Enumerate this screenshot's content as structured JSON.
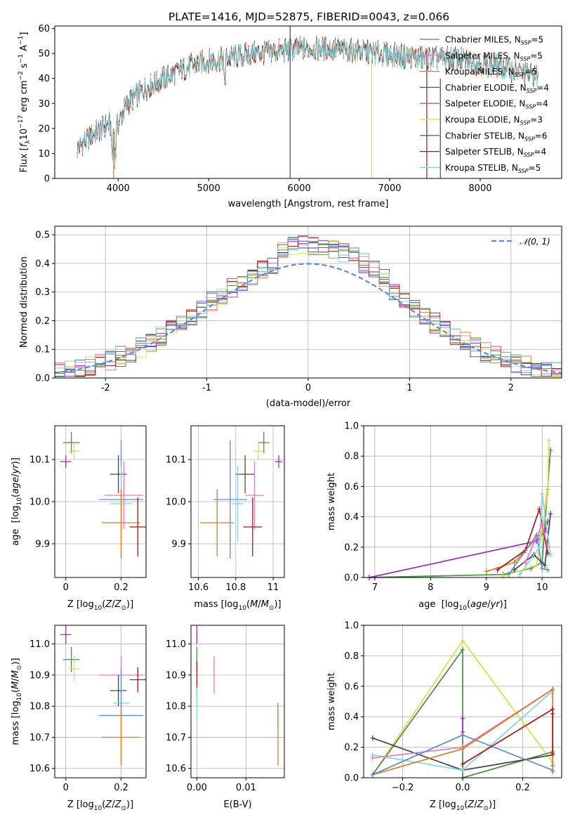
{
  "figure": {
    "title": "PLATE=1416, MJD=52875, FIBERID=0043, z=0.066"
  },
  "colors": {
    "chabrier_miles": "#4c8a4c",
    "salpeter_miles": "#e377c2",
    "kroupa_miles": "#e07b20",
    "chabrier_elodie": "#555555",
    "salpeter_elodie": "#9a2fb5",
    "kroupa_elodie": "#d4e04a",
    "chabrier_stelib": "#444444",
    "salpeter_stelib": "#b01515",
    "kroupa_stelib": "#7fd6dc",
    "blue": "#5f8ad6",
    "grid": "#b0b0b0"
  },
  "chart_data": [
    {
      "type": "line",
      "id": "spectrum",
      "title": "PLATE=1416, MJD=52875, FIBERID=0043, z=0.066",
      "xlabel": "wavelength [Angstrom, rest frame]",
      "ylabel": "Flux [f_λ 10^-17 erg cm^-2 s^-1 A^-1]",
      "xlim": [
        3300,
        8900
      ],
      "ylim": [
        0,
        61
      ],
      "xticks": [
        4000,
        5000,
        6000,
        7000,
        8000
      ],
      "yticks": [
        0,
        10,
        20,
        30,
        40,
        50,
        60
      ],
      "grid": false,
      "legend_position": "top-right",
      "continuum": {
        "x": [
          3550,
          3700,
          3900,
          3950,
          4100,
          4300,
          4500,
          4800,
          5000,
          5200,
          5500,
          5800,
          6000,
          6300,
          6600,
          6900,
          7100,
          7400,
          7700,
          8000,
          8300,
          8600
        ],
        "y": [
          12,
          17,
          22,
          18,
          30,
          36,
          40,
          45,
          47,
          48,
          50,
          51,
          52,
          52,
          51,
          50,
          49,
          48,
          48,
          46,
          44,
          41
        ]
      },
      "series": [
        {
          "name": "Chabrier MILES",
          "nssp": "5"
        },
        {
          "name": "Salpeter MILES",
          "nssp": "5"
        },
        {
          "name": "Kroupa MILES",
          "nssp": "5"
        },
        {
          "name": "Chabrier ELODIE",
          "nssp": "4"
        },
        {
          "name": "Salpeter ELODIE",
          "nssp": "4"
        },
        {
          "name": "Kroupa ELODIE",
          "nssp": "3"
        },
        {
          "name": "Chabrier STELIB",
          "nssp": "6"
        },
        {
          "name": "Salpeter STELIB",
          "nssp": "4"
        },
        {
          "name": "Kroupa STELIB",
          "nssp": "5"
        }
      ]
    },
    {
      "type": "histogram",
      "id": "residuals",
      "xlabel": "(data-model)/error",
      "ylabel": "Normed distribution",
      "xlim": [
        -2.5,
        2.5
      ],
      "ylim": [
        0,
        0.53
      ],
      "xticks": [
        -2,
        -1,
        0,
        1,
        2
      ],
      "yticks": [
        0.0,
        0.1,
        0.2,
        0.3,
        0.4,
        0.5
      ],
      "grid": true,
      "legend": "𝒩(0, 1)",
      "legend_position": "top-right",
      "bin_width": 0.1,
      "reference_curve": {
        "type": "gaussian",
        "mean": 0,
        "sigma": 1
      }
    },
    {
      "type": "scatter",
      "id": "age-vs-z",
      "xlabel": "Z [log10(Z/Z⊙)]",
      "ylabel": "age [log10(age/yr)]",
      "xlim": [
        -0.04,
        0.29
      ],
      "ylim": [
        9.82,
        10.18
      ],
      "xticks": [
        0.0,
        0.2
      ],
      "yticks": [
        9.9,
        10.0,
        10.1
      ],
      "grid": true,
      "points": [
        {
          "x": 0.02,
          "xerr": 0.03,
          "y": 10.14,
          "yerr": 0.025,
          "c": "chabrier_miles"
        },
        {
          "x": 0.03,
          "xerr": 0.02,
          "y": 10.12,
          "yerr": 0.02,
          "c": "kroupa_elodie"
        },
        {
          "x": 0.0,
          "xerr": 0.02,
          "y": 10.095,
          "yerr": 0.015,
          "c": "salpeter_elodie"
        },
        {
          "x": 0.19,
          "xerr": 0.03,
          "y": 10.065,
          "yerr": 0.045,
          "c": "chabrier_stelib"
        },
        {
          "x": 0.21,
          "xerr": 0.07,
          "y": 10.015,
          "yerr": 0.08,
          "c": "salpeter_miles"
        },
        {
          "x": 0.2,
          "xerr": 0.08,
          "y": 10.005,
          "yerr": 0.14,
          "c": "blue"
        },
        {
          "x": 0.2,
          "xerr": 0.04,
          "y": 9.995,
          "yerr": 0.09,
          "c": "kroupa_stelib"
        },
        {
          "x": 0.2,
          "xerr": 0.07,
          "y": 9.95,
          "yerr": 0.08,
          "c": "kroupa_miles"
        },
        {
          "x": 0.26,
          "xerr": 0.03,
          "y": 9.94,
          "yerr": 0.07,
          "c": "salpeter_stelib"
        }
      ]
    },
    {
      "type": "scatter",
      "id": "age-vs-mass",
      "xlabel": "mass [log10(M/M⊙)]",
      "ylabel": "",
      "xlim": [
        10.56,
        11.06
      ],
      "ylim": [
        9.82,
        10.18
      ],
      "xticks": [
        10.6,
        10.8,
        11.0
      ],
      "yticks": [
        9.9,
        10.0,
        10.1
      ],
      "grid": true,
      "points": [
        {
          "x": 10.95,
          "xerr": 0.03,
          "y": 10.14,
          "yerr": 0.025,
          "c": "chabrier_miles"
        },
        {
          "x": 10.92,
          "xerr": 0.03,
          "y": 10.12,
          "yerr": 0.02,
          "c": "kroupa_elodie"
        },
        {
          "x": 11.03,
          "xerr": 0.02,
          "y": 10.095,
          "yerr": 0.015,
          "c": "salpeter_elodie"
        },
        {
          "x": 10.85,
          "xerr": 0.05,
          "y": 10.065,
          "yerr": 0.045,
          "c": "chabrier_stelib"
        },
        {
          "x": 10.9,
          "xerr": 0.05,
          "y": 10.015,
          "yerr": 0.08,
          "c": "salpeter_miles"
        },
        {
          "x": 10.77,
          "xerr": 0.09,
          "y": 10.005,
          "yerr": 0.14,
          "c": "blue"
        },
        {
          "x": 10.81,
          "xerr": 0.03,
          "y": 9.995,
          "yerr": 0.09,
          "c": "kroupa_stelib"
        },
        {
          "x": 10.7,
          "xerr": 0.09,
          "y": 9.95,
          "yerr": 0.08,
          "c": "kroupa_miles"
        },
        {
          "x": 10.89,
          "xerr": 0.05,
          "y": 9.94,
          "yerr": 0.07,
          "c": "salpeter_stelib"
        }
      ]
    },
    {
      "type": "line",
      "id": "weight-vs-age",
      "xlabel": "age [log10(age/yr)]",
      "ylabel": "mass weight",
      "xlim": [
        6.8,
        10.35
      ],
      "ylim": [
        0,
        1.0
      ],
      "xticks": [
        7,
        8,
        9,
        10
      ],
      "yticks": [
        0.0,
        0.2,
        0.4,
        0.6,
        0.8,
        1.0
      ],
      "grid": true,
      "series": [
        {
          "c": "chabrier_miles",
          "x": [
            6.9,
            9.3,
            9.8,
            10.0,
            10.15
          ],
          "y": [
            0.0,
            0.02,
            0.06,
            0.1,
            0.84
          ]
        },
        {
          "c": "salpeter_elodie",
          "x": [
            6.9,
            9.9,
            10.05,
            10.1
          ],
          "y": [
            0.0,
            0.24,
            0.3,
            0.37
          ]
        },
        {
          "c": "kroupa_miles",
          "x": [
            9.0,
            9.5,
            10.0,
            10.1
          ],
          "y": [
            0.04,
            0.1,
            0.3,
            0.58
          ]
        },
        {
          "c": "kroupa_elodie",
          "x": [
            9.3,
            9.9,
            10.1,
            10.12
          ],
          "y": [
            0.01,
            0.08,
            0.55,
            0.9
          ]
        },
        {
          "c": "salpeter_stelib",
          "x": [
            9.2,
            9.7,
            9.95,
            10.1
          ],
          "y": [
            0.05,
            0.18,
            0.45,
            0.16
          ]
        },
        {
          "c": "blue",
          "x": [
            9.4,
            9.9,
            10.0,
            10.1
          ],
          "y": [
            0.02,
            0.28,
            0.06,
            0.05
          ]
        },
        {
          "c": "chabrier_stelib",
          "x": [
            9.5,
            9.85,
            10.05,
            10.15
          ],
          "y": [
            0.05,
            0.15,
            0.08,
            0.42
          ]
        },
        {
          "c": "kroupa_stelib",
          "x": [
            9.6,
            9.95,
            10.0,
            10.15
          ],
          "y": [
            0.02,
            0.2,
            0.55,
            0.15
          ]
        },
        {
          "c": "salpeter_miles",
          "x": [
            9.7,
            10.0,
            10.1
          ],
          "y": [
            0.1,
            0.35,
            0.2
          ]
        }
      ]
    },
    {
      "type": "scatter",
      "id": "mass-vs-z",
      "xlabel": "Z [log10(Z/Z⊙)]",
      "ylabel": "mass [log10(M/M⊙)]",
      "xlim": [
        -0.04,
        0.29
      ],
      "ylim": [
        10.57,
        11.06
      ],
      "xticks": [
        0.0,
        0.2
      ],
      "yticks": [
        10.6,
        10.7,
        10.8,
        10.9,
        11.0
      ],
      "grid": true,
      "points": [
        {
          "x": 0.0,
          "xerr": 0.02,
          "y": 11.03,
          "yerr": 0.03,
          "c": "salpeter_elodie"
        },
        {
          "x": 0.02,
          "xerr": 0.03,
          "y": 10.95,
          "yerr": 0.04,
          "c": "chabrier_miles"
        },
        {
          "x": 0.03,
          "xerr": 0.02,
          "y": 10.92,
          "yerr": 0.04,
          "c": "kroupa_elodie"
        },
        {
          "x": 0.2,
          "xerr": 0.08,
          "y": 10.9,
          "yerr": 0.06,
          "c": "salpeter_miles"
        },
        {
          "x": 0.26,
          "xerr": 0.03,
          "y": 10.885,
          "yerr": 0.04,
          "c": "salpeter_stelib"
        },
        {
          "x": 0.19,
          "xerr": 0.03,
          "y": 10.85,
          "yerr": 0.05,
          "c": "chabrier_stelib"
        },
        {
          "x": 0.2,
          "xerr": 0.03,
          "y": 10.81,
          "yerr": 0.05,
          "c": "kroupa_stelib"
        },
        {
          "x": 0.2,
          "xerr": 0.08,
          "y": 10.77,
          "yerr": 0.15,
          "c": "blue"
        },
        {
          "x": 0.2,
          "xerr": 0.07,
          "y": 10.7,
          "yerr": 0.09,
          "c": "kroupa_miles"
        }
      ]
    },
    {
      "type": "scatter",
      "id": "mass-vs-ebv",
      "xlabel": "E(B-V)",
      "ylabel": "",
      "xlim": [
        -0.0012,
        0.0178
      ],
      "ylim": [
        10.57,
        11.06
      ],
      "xticks": [
        0.0,
        0.01
      ],
      "xticklabels": [
        "0.00",
        "0.01"
      ],
      "yticks": [
        10.6,
        10.7,
        10.8,
        10.9,
        11.0
      ],
      "grid": true,
      "points": [
        {
          "x": 0.0,
          "xerr": 0.0,
          "y": 11.03,
          "yerr": 0.03,
          "c": "salpeter_elodie"
        },
        {
          "x": 0.0,
          "xerr": 0.0,
          "y": 10.95,
          "yerr": 0.04,
          "c": "chabrier_miles"
        },
        {
          "x": 0.0,
          "xerr": 0.0,
          "y": 10.885,
          "yerr": 0.06,
          "c": "salpeter_stelib"
        },
        {
          "x": 0.0,
          "xerr": 0.0,
          "y": 10.81,
          "yerr": 0.05,
          "c": "kroupa_stelib"
        },
        {
          "x": 0.0035,
          "xerr": 0.0,
          "y": 10.9,
          "yerr": 0.06,
          "c": "salpeter_miles"
        },
        {
          "x": 0.0165,
          "xerr": 0.0,
          "y": 10.77,
          "yerr": 0.04,
          "c": "blue"
        },
        {
          "x": 0.0165,
          "xerr": 0.0,
          "y": 10.7,
          "yerr": 0.09,
          "c": "kroupa_miles"
        }
      ]
    },
    {
      "type": "line",
      "id": "weight-vs-z",
      "xlabel": "Z [log10(Z/Z⊙)]",
      "ylabel": "mass weight",
      "xlim": [
        -0.33,
        0.33
      ],
      "ylim": [
        0,
        1.0
      ],
      "xticks": [
        -0.2,
        0.0,
        0.2
      ],
      "xticklabels": [
        "−0.2",
        "0.0",
        "0.2"
      ],
      "yticks": [
        0.0,
        0.2,
        0.4,
        0.6,
        0.8,
        1.0
      ],
      "grid": true,
      "series": [
        {
          "c": "kroupa_elodie",
          "x": [
            -0.3,
            0.0,
            0.3,
            0.3
          ],
          "y": [
            0.02,
            0.9,
            0.1,
            0.55
          ]
        },
        {
          "c": "chabrier_miles",
          "x": [
            -0.3,
            0.0,
            0.0,
            0.3,
            0.3
          ],
          "y": [
            0.02,
            0.84,
            0.0,
            0.17,
            0.08
          ]
        },
        {
          "c": "chabrier_stelib",
          "x": [
            -0.3,
            0.0,
            0.3,
            0.3
          ],
          "y": [
            0.26,
            0.05,
            0.15,
            0.42
          ]
        },
        {
          "c": "kroupa_stelib",
          "x": [
            -0.3,
            0.0,
            0.3,
            0.3
          ],
          "y": [
            0.15,
            0.05,
            0.57,
            0.2
          ]
        },
        {
          "c": "salpeter_miles",
          "x": [
            -0.3,
            0.0,
            0.3
          ],
          "y": [
            0.13,
            0.2,
            0.58
          ]
        },
        {
          "c": "kroupa_miles",
          "x": [
            -0.3,
            0.0,
            0.3,
            0.3
          ],
          "y": [
            0.02,
            0.19,
            0.58,
            0.04
          ]
        },
        {
          "c": "blue",
          "x": [
            -0.3,
            0.0,
            0.3
          ],
          "y": [
            0.02,
            0.28,
            0.05
          ]
        },
        {
          "c": "salpeter_stelib",
          "x": [
            0.0,
            0.3,
            0.3
          ],
          "y": [
            0.09,
            0.45,
            0.16
          ]
        },
        {
          "c": "salpeter_elodie",
          "x": [
            0.0,
            0.0
          ],
          "y": [
            0.3,
            0.39
          ]
        }
      ]
    }
  ]
}
